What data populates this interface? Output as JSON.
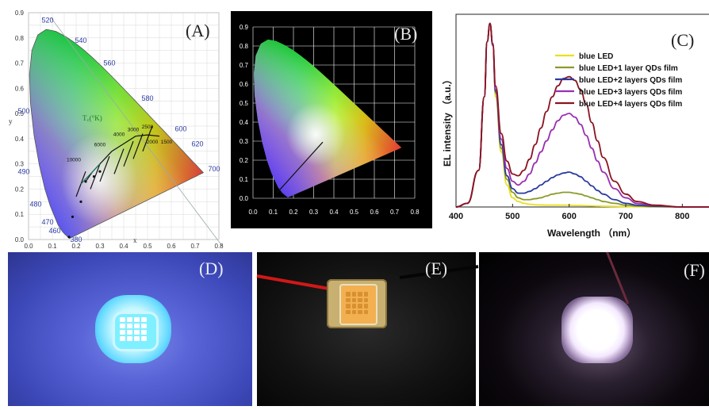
{
  "panels": {
    "A": {
      "label": "(A)",
      "y_ticks": [
        "0.0",
        "0.1",
        "0.2",
        "0.3",
        "0.4",
        "0.5",
        "0.6",
        "0.7",
        "0.8",
        "0.9"
      ],
      "x_ticks": [
        "0.0",
        "0.1",
        "0.2",
        "0.3",
        "0.4",
        "0.5",
        "0.6",
        "0.7",
        "0.8"
      ],
      "x_axis_letter": "x",
      "y_axis_letter": "y",
      "wavelength_labels": [
        "520",
        "540",
        "560",
        "580",
        "600",
        "620",
        "700",
        "500",
        "490",
        "480",
        "470",
        "460",
        "380"
      ],
      "planckian_label": "T꜀(°K)",
      "cct_labels": [
        "10000",
        "6000",
        "4000",
        "3000",
        "2500",
        "2000",
        "1500"
      ]
    },
    "B": {
      "label": "(B)",
      "y_ticks": [
        "0.0",
        "0.1",
        "0.2",
        "0.3",
        "0.4",
        "0.5",
        "0.6",
        "0.7",
        "0.8",
        "0.9"
      ],
      "x_ticks": [
        "0.0",
        "0.1",
        "0.2",
        "0.3",
        "0.4",
        "0.5",
        "0.6",
        "0.7",
        "0.8"
      ]
    },
    "C": {
      "label": "(C)",
      "x_ticks": [
        "400",
        "500",
        "600",
        "700",
        "800"
      ]
    },
    "D": {
      "label": "(D)"
    },
    "E": {
      "label": "(E)"
    },
    "F": {
      "label": "(F)"
    }
  },
  "chart_data": [
    {
      "type": "line",
      "panel": "C",
      "title": "",
      "xlabel": "Wavelength （nm）",
      "ylabel": "EL intensity （a.u.）",
      "xlim": [
        400,
        850
      ],
      "ylim": [
        0,
        1.05
      ],
      "x": [
        400,
        420,
        440,
        450,
        455,
        460,
        465,
        470,
        480,
        490,
        500,
        510,
        520,
        530,
        540,
        550,
        560,
        570,
        580,
        590,
        600,
        610,
        620,
        630,
        640,
        650,
        660,
        680,
        700,
        720,
        750,
        800,
        850
      ],
      "legend_position": "top-right",
      "series": [
        {
          "name": "blue LED",
          "color": "#e8e020",
          "values": [
            0.0,
            0.02,
            0.2,
            0.6,
            0.9,
            1.0,
            0.88,
            0.6,
            0.3,
            0.12,
            0.05,
            0.03,
            0.02,
            0.015,
            0.012,
            0.011,
            0.01,
            0.01,
            0.01,
            0.01,
            0.01,
            0.008,
            0.008,
            0.007,
            0.006,
            0.005,
            0.004,
            0.003,
            0.002,
            0.001,
            0.0,
            0.0,
            0.0
          ]
        },
        {
          "name": "blue LED+1 layer QDs film",
          "color": "#8a9a2a",
          "values": [
            0.0,
            0.02,
            0.2,
            0.6,
            0.9,
            1.0,
            0.88,
            0.62,
            0.32,
            0.15,
            0.08,
            0.05,
            0.04,
            0.04,
            0.045,
            0.05,
            0.06,
            0.07,
            0.075,
            0.08,
            0.08,
            0.075,
            0.07,
            0.06,
            0.05,
            0.04,
            0.03,
            0.02,
            0.01,
            0.005,
            0.002,
            0.0,
            0.0
          ]
        },
        {
          "name": "blue LED+2 layers QDs film",
          "color": "#2a3aa0",
          "values": [
            0.0,
            0.02,
            0.2,
            0.6,
            0.9,
            1.0,
            0.88,
            0.63,
            0.34,
            0.17,
            0.1,
            0.075,
            0.075,
            0.085,
            0.1,
            0.12,
            0.14,
            0.16,
            0.175,
            0.185,
            0.19,
            0.18,
            0.165,
            0.14,
            0.115,
            0.09,
            0.07,
            0.04,
            0.02,
            0.01,
            0.004,
            0.0,
            0.0
          ]
        },
        {
          "name": "blue LED+3 layers QDs film",
          "color": "#9a30b0",
          "values": [
            0.0,
            0.02,
            0.2,
            0.6,
            0.9,
            1.0,
            0.88,
            0.64,
            0.37,
            0.21,
            0.14,
            0.12,
            0.14,
            0.18,
            0.24,
            0.3,
            0.36,
            0.42,
            0.47,
            0.5,
            0.51,
            0.49,
            0.45,
            0.39,
            0.32,
            0.25,
            0.19,
            0.1,
            0.05,
            0.02,
            0.008,
            0.0,
            0.0
          ]
        },
        {
          "name": "blue LED+4 layers QDs film",
          "color": "#8a1420",
          "values": [
            0.0,
            0.02,
            0.2,
            0.6,
            0.9,
            1.0,
            0.89,
            0.66,
            0.4,
            0.25,
            0.18,
            0.17,
            0.2,
            0.26,
            0.34,
            0.43,
            0.52,
            0.6,
            0.66,
            0.7,
            0.71,
            0.69,
            0.64,
            0.56,
            0.46,
            0.36,
            0.27,
            0.14,
            0.07,
            0.03,
            0.01,
            0.0,
            0.0
          ]
        }
      ]
    },
    {
      "type": "scatter",
      "panel": "A",
      "title": "",
      "xlabel": "x",
      "ylabel": "y",
      "xlim": [
        0,
        0.8
      ],
      "ylim": [
        0,
        0.9
      ],
      "points": [
        [
          0.17,
          0.01
        ],
        [
          0.185,
          0.09
        ],
        [
          0.22,
          0.15
        ],
        [
          0.24,
          0.23
        ],
        [
          0.275,
          0.25
        ],
        [
          0.3,
          0.27
        ]
      ]
    },
    {
      "type": "scatter",
      "panel": "B",
      "title": "",
      "xlim": [
        0,
        0.8
      ],
      "ylim": [
        0,
        0.9
      ],
      "line": [
        [
          0.12,
          0.03
        ],
        [
          0.345,
          0.295
        ]
      ]
    }
  ]
}
